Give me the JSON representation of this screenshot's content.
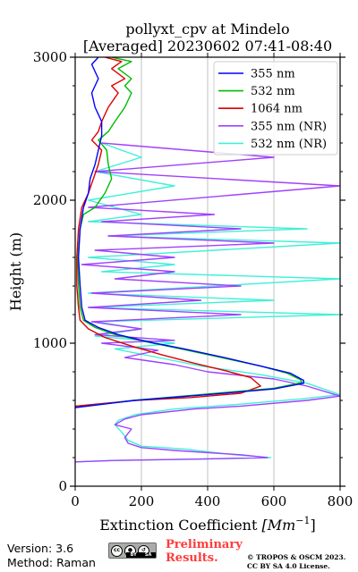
{
  "chart_data": {
    "type": "line",
    "title": [
      "pollyxt_cpv at Mindelo",
      "[Averaged] 20230602 07:41-08:40"
    ],
    "xlabel": "Extinction Coefficient [Mm⁻¹]",
    "xlabel_main": "Extinction Coefficient ",
    "xlabel_unit": "[Mm",
    "xlabel_exp": "−1",
    "xlabel_close": "]",
    "ylabel": "Height (m)",
    "xlim": [
      0,
      800
    ],
    "ylim": [
      0,
      3000
    ],
    "xticks": [
      "0",
      "200",
      "400",
      "600",
      "800"
    ],
    "yticks": [
      "0",
      "1000",
      "2000",
      "3000"
    ],
    "grid": "vertical",
    "legend_position": "top-right",
    "series": [
      {
        "name": "355 nm",
        "color": "#0000ff",
        "points": [
          [
            0,
            550
          ],
          [
            180,
            600
          ],
          [
            400,
            640
          ],
          [
            600,
            680
          ],
          [
            690,
            720
          ],
          [
            690,
            740
          ],
          [
            650,
            790
          ],
          [
            560,
            840
          ],
          [
            450,
            900
          ],
          [
            330,
            960
          ],
          [
            220,
            1010
          ],
          [
            130,
            1060
          ],
          [
            70,
            1110
          ],
          [
            30,
            1160
          ],
          [
            20,
            1250
          ],
          [
            15,
            1400
          ],
          [
            10,
            1600
          ],
          [
            15,
            1800
          ],
          [
            25,
            1950
          ],
          [
            40,
            2050
          ],
          [
            45,
            2150
          ],
          [
            60,
            2250
          ],
          [
            70,
            2350
          ],
          [
            80,
            2450
          ],
          [
            80,
            2550
          ],
          [
            60,
            2650
          ],
          [
            50,
            2750
          ],
          [
            70,
            2850
          ],
          [
            50,
            2950
          ],
          [
            70,
            3000
          ]
        ]
      },
      {
        "name": "532 nm",
        "color": "#00bb00",
        "points": [
          [
            0,
            550
          ],
          [
            175,
            600
          ],
          [
            400,
            645
          ],
          [
            600,
            685
          ],
          [
            685,
            725
          ],
          [
            680,
            745
          ],
          [
            640,
            790
          ],
          [
            560,
            840
          ],
          [
            440,
            900
          ],
          [
            320,
            960
          ],
          [
            215,
            1010
          ],
          [
            120,
            1060
          ],
          [
            60,
            1110
          ],
          [
            25,
            1160
          ],
          [
            15,
            1250
          ],
          [
            10,
            1400
          ],
          [
            8,
            1600
          ],
          [
            15,
            1800
          ],
          [
            25,
            1900
          ],
          [
            60,
            1950
          ],
          [
            90,
            2050
          ],
          [
            110,
            2150
          ],
          [
            100,
            2250
          ],
          [
            95,
            2350
          ],
          [
            70,
            2420
          ],
          [
            100,
            2480
          ],
          [
            120,
            2550
          ],
          [
            150,
            2650
          ],
          [
            170,
            2750
          ],
          [
            150,
            2800
          ],
          [
            170,
            2850
          ],
          [
            130,
            2920
          ],
          [
            170,
            2970
          ],
          [
            110,
            3000
          ]
        ]
      },
      {
        "name": "1064 nm",
        "color": "#dd0000",
        "points": [
          [
            0,
            560
          ],
          [
            180,
            600
          ],
          [
            350,
            620
          ],
          [
            500,
            650
          ],
          [
            560,
            700
          ],
          [
            530,
            760
          ],
          [
            450,
            810
          ],
          [
            360,
            860
          ],
          [
            260,
            920
          ],
          [
            170,
            980
          ],
          [
            90,
            1040
          ],
          [
            40,
            1100
          ],
          [
            15,
            1160
          ],
          [
            10,
            1250
          ],
          [
            5,
            1400
          ],
          [
            5,
            1600
          ],
          [
            10,
            1800
          ],
          [
            20,
            1950
          ],
          [
            40,
            2050
          ],
          [
            55,
            2150
          ],
          [
            70,
            2250
          ],
          [
            80,
            2350
          ],
          [
            50,
            2420
          ],
          [
            70,
            2480
          ],
          [
            80,
            2550
          ],
          [
            100,
            2650
          ],
          [
            130,
            2750
          ],
          [
            110,
            2800
          ],
          [
            150,
            2850
          ],
          [
            110,
            2920
          ],
          [
            140,
            2970
          ],
          [
            90,
            3000
          ]
        ]
      },
      {
        "name": "355 nm (NR)",
        "color": "#a040ff",
        "points": [
          [
            0,
            170
          ],
          [
            120,
            180
          ],
          [
            380,
            190
          ],
          [
            580,
            200
          ],
          [
            500,
            220
          ],
          [
            300,
            250
          ],
          [
            200,
            270
          ],
          [
            160,
            300
          ],
          [
            150,
            340
          ],
          [
            170,
            400
          ],
          [
            120,
            430
          ],
          [
            150,
            470
          ],
          [
            200,
            500
          ],
          [
            360,
            540
          ],
          [
            500,
            560
          ],
          [
            700,
            600
          ],
          [
            800,
            630
          ],
          [
            700,
            700
          ],
          [
            600,
            750
          ],
          [
            400,
            800
          ],
          [
            300,
            850
          ],
          [
            150,
            900
          ],
          [
            250,
            950
          ],
          [
            80,
            1000
          ],
          [
            300,
            1020
          ],
          [
            60,
            1060
          ],
          [
            200,
            1100
          ],
          [
            50,
            1150
          ],
          [
            500,
            1200
          ],
          [
            40,
            1250
          ],
          [
            380,
            1300
          ],
          [
            50,
            1350
          ],
          [
            500,
            1400
          ],
          [
            120,
            1450
          ],
          [
            300,
            1500
          ],
          [
            20,
            1550
          ],
          [
            300,
            1600
          ],
          [
            60,
            1650
          ],
          [
            600,
            1700
          ],
          [
            100,
            1750
          ],
          [
            500,
            1800
          ],
          [
            80,
            1850
          ],
          [
            420,
            1900
          ],
          [
            40,
            1950
          ],
          [
            800,
            2100
          ],
          [
            60,
            2200
          ],
          [
            600,
            2300
          ],
          [
            80,
            2400
          ]
        ]
      },
      {
        "name": "532 nm (NR)",
        "color": "#40f0d8",
        "points": [
          [
            0,
            170
          ],
          [
            120,
            180
          ],
          [
            400,
            190
          ],
          [
            590,
            200
          ],
          [
            480,
            220
          ],
          [
            330,
            260
          ],
          [
            200,
            280
          ],
          [
            160,
            320
          ],
          [
            140,
            380
          ],
          [
            120,
            430
          ],
          [
            130,
            460
          ],
          [
            180,
            500
          ],
          [
            300,
            540
          ],
          [
            480,
            570
          ],
          [
            680,
            610
          ],
          [
            800,
            640
          ],
          [
            700,
            720
          ],
          [
            560,
            780
          ],
          [
            380,
            840
          ],
          [
            250,
            900
          ],
          [
            120,
            960
          ],
          [
            300,
            1000
          ],
          [
            60,
            1050
          ],
          [
            200,
            1100
          ],
          [
            60,
            1150
          ],
          [
            800,
            1200
          ],
          [
            40,
            1250
          ],
          [
            600,
            1300
          ],
          [
            40,
            1350
          ],
          [
            800,
            1450
          ],
          [
            80,
            1500
          ],
          [
            300,
            1550
          ],
          [
            40,
            1600
          ],
          [
            800,
            1700
          ],
          [
            100,
            1750
          ],
          [
            700,
            1800
          ],
          [
            40,
            1850
          ],
          [
            200,
            1900
          ],
          [
            40,
            2000
          ],
          [
            300,
            2100
          ],
          [
            60,
            2200
          ],
          [
            200,
            2300
          ],
          [
            80,
            2400
          ]
        ]
      }
    ]
  },
  "footer": {
    "version": "Version: 3.6",
    "method": "Method: Raman",
    "preliminary": [
      "Preliminary",
      "Results."
    ],
    "copyright": [
      "© TROPOS & OSCM 2023.",
      "CC BY SA 4.0 License."
    ],
    "cc_badge": {
      "cc": "cc",
      "by_label": "BY",
      "sa_label": "SA"
    }
  },
  "colors": {
    "accent": "#ff3b3b",
    "grid": "#b0b0b0",
    "frame": "#000000"
  }
}
